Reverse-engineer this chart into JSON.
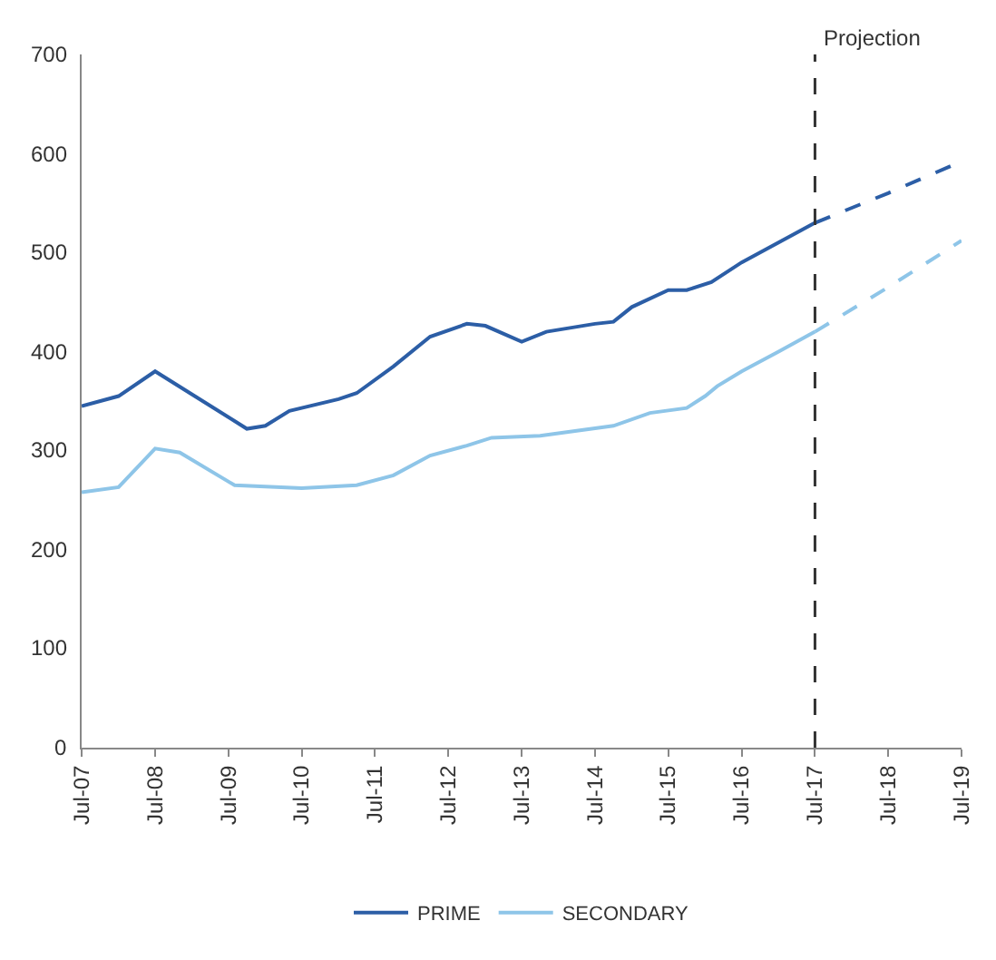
{
  "chart_data": {
    "type": "line",
    "series": [
      {
        "name": "PRIME",
        "color": "#2c5ea6",
        "line_style": "solid",
        "x": [
          "2007-07",
          "2008-01",
          "2008-07",
          "2009-10",
          "2010-01",
          "2010-05",
          "2011-01",
          "2011-04",
          "2011-10",
          "2012-04",
          "2012-10",
          "2013-01",
          "2013-07",
          "2013-11",
          "2014-07",
          "2014-10",
          "2015-01",
          "2015-07",
          "2015-10",
          "2016-02",
          "2016-07",
          "2017-07"
        ],
        "values": [
          345,
          355,
          380,
          322,
          325,
          340,
          352,
          358,
          385,
          415,
          428,
          426,
          410,
          420,
          428,
          430,
          445,
          462,
          462,
          470,
          490,
          530
        ]
      },
      {
        "name": "SECONDARY",
        "color": "#8ec5e8",
        "line_style": "solid",
        "x": [
          "2007-07",
          "2008-01",
          "2008-07",
          "2008-11",
          "2009-08",
          "2010-07",
          "2011-04",
          "2011-10",
          "2012-04",
          "2012-10",
          "2013-02",
          "2013-10",
          "2014-04",
          "2014-10",
          "2015-04",
          "2015-10",
          "2016-01",
          "2016-03",
          "2016-07",
          "2017-01",
          "2017-07"
        ],
        "values": [
          258,
          263,
          302,
          298,
          265,
          262,
          265,
          275,
          295,
          305,
          313,
          315,
          320,
          325,
          338,
          343,
          355,
          365,
          380,
          400,
          420
        ]
      },
      {
        "color": "#2c5ea6",
        "line_style": "dashed",
        "x": [
          "2017-07",
          "2018-07",
          "2019-07"
        ],
        "values": [
          530,
          560,
          592
        ]
      },
      {
        "color": "#8ec5e8",
        "line_style": "dashed",
        "x": [
          "2017-07",
          "2018-07",
          "2019-07"
        ],
        "values": [
          420,
          465,
          512
        ]
      }
    ],
    "xlim": [
      "2007-07",
      "2019-07"
    ],
    "xticks": [
      {
        "value": "2007-07",
        "label": "Jul-07"
      },
      {
        "value": "2008-07",
        "label": "Jul-08"
      },
      {
        "value": "2009-07",
        "label": "Jul-09"
      },
      {
        "value": "2010-07",
        "label": "Jul-10"
      },
      {
        "value": "2011-07",
        "label": "Jul-11"
      },
      {
        "value": "2012-07",
        "label": "Jul-12"
      },
      {
        "value": "2013-07",
        "label": "Jul-13"
      },
      {
        "value": "2014-07",
        "label": "Jul-14"
      },
      {
        "value": "2015-07",
        "label": "Jul-15"
      },
      {
        "value": "2016-07",
        "label": "Jul-16"
      },
      {
        "value": "2017-07",
        "label": "Jul-17"
      },
      {
        "value": "2018-07",
        "label": "Jul-18"
      },
      {
        "value": "2019-07",
        "label": "Jul-19"
      }
    ],
    "ylim": [
      0,
      700
    ],
    "yticks": [
      0,
      100,
      200,
      300,
      400,
      500,
      600,
      700
    ],
    "ref_lines": [
      {
        "axis": "x",
        "value": "2017-07",
        "label": "Projection",
        "color": "#333333",
        "line_style": "dashed"
      }
    ],
    "legend": "bottom",
    "marker": "none"
  }
}
